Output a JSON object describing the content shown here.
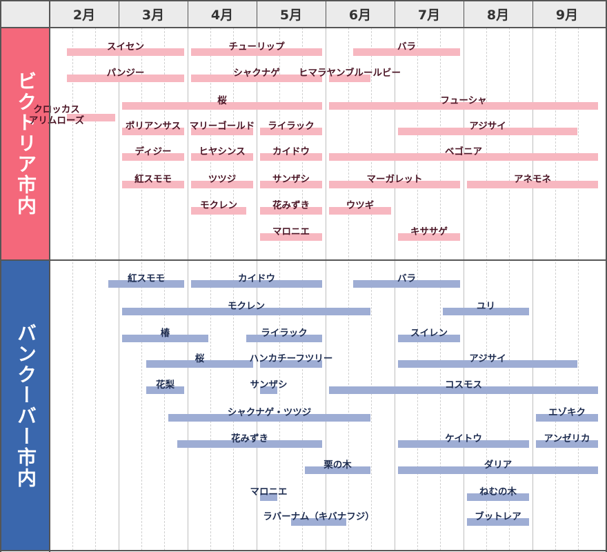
{
  "months": [
    "2月",
    "3月",
    "4月",
    "5月",
    "6月",
    "7月",
    "8月",
    "9月"
  ],
  "sections": [
    {
      "label": "ビクトリア市内",
      "color": "#f4687b",
      "bar_color": "#f7b7c0",
      "items": [
        {
          "name": "スイセン",
          "start": 2.25,
          "end": 3.95
        },
        {
          "name": "チューリップ",
          "start": 4.05,
          "end": 5.95
        },
        {
          "name": "バラ",
          "start": 6.4,
          "end": 7.95
        },
        {
          "name": "パンジー",
          "start": 2.25,
          "end": 3.95
        },
        {
          "name": "シャクナゲ",
          "start": 4.05,
          "end": 5.95
        },
        {
          "name": "ヒマラヤンブルールビー",
          "start": 6.05,
          "end": 6.65
        },
        {
          "name": "桜",
          "start": 3.05,
          "end": 5.95
        },
        {
          "name": "フューシャ",
          "start": 6.05,
          "end": 9.95
        },
        {
          "name": "クロッカス\nアリムローズ",
          "start": 2.25,
          "end": 2.95
        },
        {
          "name": "ポリアンサス",
          "start": 3.05,
          "end": 3.95
        },
        {
          "name": "マリーゴールド",
          "start": 4.05,
          "end": 4.95
        },
        {
          "name": "ライラック",
          "start": 5.05,
          "end": 5.95
        },
        {
          "name": "アジサイ",
          "start": 7.05,
          "end": 9.65
        },
        {
          "name": "ディジー",
          "start": 3.05,
          "end": 3.95
        },
        {
          "name": "ヒヤシンス",
          "start": 4.05,
          "end": 4.95
        },
        {
          "name": "カイドウ",
          "start": 5.05,
          "end": 5.95
        },
        {
          "name": "ベゴニア",
          "start": 6.05,
          "end": 9.95
        },
        {
          "name": "紅スモモ",
          "start": 3.05,
          "end": 3.95
        },
        {
          "name": "ツツジ",
          "start": 4.05,
          "end": 4.95
        },
        {
          "name": "サンザシ",
          "start": 5.05,
          "end": 5.95
        },
        {
          "name": "マーガレット",
          "start": 6.05,
          "end": 7.95
        },
        {
          "name": "アネモネ",
          "start": 8.05,
          "end": 9.95
        },
        {
          "name": "モクレン",
          "start": 4.05,
          "end": 4.85
        },
        {
          "name": "花みずき",
          "start": 5.05,
          "end": 5.95
        },
        {
          "name": "ウツギ",
          "start": 6.05,
          "end": 6.95
        },
        {
          "name": "マロニエ",
          "start": 5.05,
          "end": 5.95
        },
        {
          "name": "キササゲ",
          "start": 7.05,
          "end": 7.95
        }
      ]
    },
    {
      "label": "バンクーバー市内",
      "color": "#3a67ad",
      "bar_color": "#9eadd4",
      "items": [
        {
          "name": "紅スモモ",
          "start": 2.85,
          "end": 3.95
        },
        {
          "name": "カイドウ",
          "start": 4.05,
          "end": 5.95
        },
        {
          "name": "バラ",
          "start": 6.4,
          "end": 7.95
        },
        {
          "name": "モクレン",
          "start": 3.05,
          "end": 6.65
        },
        {
          "name": "ユリ",
          "start": 7.7,
          "end": 8.95
        },
        {
          "name": "椿",
          "start": 3.05,
          "end": 4.3
        },
        {
          "name": "ライラック",
          "start": 4.85,
          "end": 5.95
        },
        {
          "name": "スイレン",
          "start": 7.05,
          "end": 7.95
        },
        {
          "name": "桜",
          "start": 3.4,
          "end": 4.95
        },
        {
          "name": "ハンカチーフツリー",
          "start": 5.05,
          "end": 5.95
        },
        {
          "name": "アジサイ",
          "start": 7.05,
          "end": 9.65
        },
        {
          "name": "花梨",
          "start": 3.4,
          "end": 3.95
        },
        {
          "name": "サンザシ",
          "start": 5.05,
          "end": 5.3
        },
        {
          "name": "コスモス",
          "start": 6.05,
          "end": 9.95
        },
        {
          "name": "シャクナゲ・ツツジ",
          "start": 3.72,
          "end": 6.65
        },
        {
          "name": "エゾキク",
          "start": 9.05,
          "end": 9.95
        },
        {
          "name": "花みずき",
          "start": 3.85,
          "end": 5.95
        },
        {
          "name": "ケイトウ",
          "start": 7.05,
          "end": 8.95
        },
        {
          "name": "アンゼリカ",
          "start": 9.05,
          "end": 9.95
        },
        {
          "name": "栗の木",
          "start": 5.7,
          "end": 6.65
        },
        {
          "name": "ダリア",
          "start": 7.05,
          "end": 9.95
        },
        {
          "name": "マロニエ",
          "start": 5.05,
          "end": 5.3
        },
        {
          "name": "ねむの木",
          "start": 8.05,
          "end": 8.95
        },
        {
          "name": "ラバーナム（キバナフジ）",
          "start": 5.5,
          "end": 6.3
        },
        {
          "name": "ブットレア",
          "start": 8.05,
          "end": 8.95
        }
      ]
    }
  ]
}
